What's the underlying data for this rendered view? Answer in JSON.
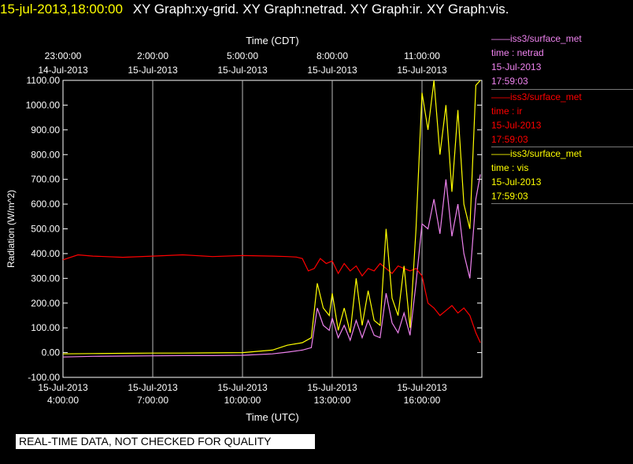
{
  "header": {
    "datetime": "15-jul-2013,18:00:00",
    "graphs": "XY Graph:xy-grid.  XY Graph:netrad.  XY Graph:ir.  XY Graph:vis."
  },
  "legend": [
    {
      "name": "——iss3/surface_met",
      "var": "time : netrad",
      "date": "15-Jul-2013",
      "time": "17:59:03",
      "color": "#ee82ee"
    },
    {
      "name": "——iss3/surface_met",
      "var": "time : ir",
      "date": "15-Jul-2013",
      "time": "17:59:03",
      "color": "#ff0000"
    },
    {
      "name": "——iss3/surface_met",
      "var": "time : vis",
      "date": "15-Jul-2013",
      "time": "17:59:03",
      "color": "#ffff00"
    }
  ],
  "banner": "REAL-TIME DATA, NOT CHECKED FOR QUALITY",
  "chart_data": {
    "type": "line",
    "title": "",
    "xlabel_bottom": "Time (UTC)",
    "xlabel_top": "Time (CDT)",
    "ylabel": "Radiation (W/m^2)",
    "ylim": [
      -100,
      1100
    ],
    "xlim_hours_utc": [
      4.0,
      18.0
    ],
    "grid": true,
    "yticks": [
      "-100.00",
      "0.00",
      "100.00",
      "200.00",
      "300.00",
      "400.00",
      "500.00",
      "600.00",
      "700.00",
      "800.00",
      "900.00",
      "1000.00",
      "1100.00"
    ],
    "bottom_ticks": [
      {
        "x": 4,
        "date": "15-Jul-2013",
        "time": "4:00:00"
      },
      {
        "x": 7,
        "date": "15-Jul-2013",
        "time": "7:00:00"
      },
      {
        "x": 10,
        "date": "15-Jul-2013",
        "time": "10:00:00"
      },
      {
        "x": 13,
        "date": "15-Jul-2013",
        "time": "13:00:00"
      },
      {
        "x": 16,
        "date": "15-Jul-2013",
        "time": "16:00:00"
      }
    ],
    "top_ticks": [
      {
        "x": 4,
        "time": "23:00:00",
        "date": "14-Jul-2013"
      },
      {
        "x": 7,
        "time": "2:00:00",
        "date": "15-Jul-2013"
      },
      {
        "x": 10,
        "time": "5:00:00",
        "date": "15-Jul-2013"
      },
      {
        "x": 13,
        "time": "8:00:00",
        "date": "15-Jul-2013"
      },
      {
        "x": 16,
        "time": "11:00:00",
        "date": "15-Jul-2013"
      }
    ],
    "series": [
      {
        "name": "netrad",
        "color": "#ee82ee",
        "x": [
          4.0,
          5.0,
          6.0,
          7.0,
          8.0,
          9.0,
          10.0,
          11.0,
          11.5,
          12.0,
          12.3,
          12.5,
          12.7,
          12.9,
          13.0,
          13.2,
          13.4,
          13.6,
          13.8,
          14.0,
          14.2,
          14.4,
          14.6,
          14.8,
          15.0,
          15.2,
          15.4,
          15.6,
          15.8,
          16.0,
          16.2,
          16.4,
          16.6,
          16.8,
          17.0,
          17.2,
          17.4,
          17.6,
          17.8,
          17.95
        ],
        "y": [
          -18,
          -15,
          -14,
          -13,
          -12,
          -12,
          -11,
          -5,
          2,
          10,
          20,
          180,
          110,
          90,
          140,
          60,
          110,
          50,
          130,
          60,
          130,
          70,
          60,
          240,
          120,
          80,
          160,
          70,
          280,
          520,
          500,
          620,
          480,
          700,
          470,
          600,
          400,
          300,
          620,
          720
        ]
      },
      {
        "name": "ir",
        "color": "#ff0000",
        "x": [
          4.0,
          4.5,
          5.0,
          6.0,
          7.0,
          8.0,
          9.0,
          10.0,
          11.0,
          11.5,
          11.8,
          12.0,
          12.2,
          12.4,
          12.6,
          12.8,
          13.0,
          13.2,
          13.4,
          13.6,
          13.8,
          14.0,
          14.2,
          14.4,
          14.6,
          14.8,
          15.0,
          15.2,
          15.4,
          15.6,
          15.8,
          16.0,
          16.2,
          16.4,
          16.6,
          16.8,
          17.0,
          17.2,
          17.4,
          17.6,
          17.8,
          17.95
        ],
        "y": [
          375,
          395,
          390,
          385,
          390,
          395,
          388,
          392,
          390,
          388,
          386,
          380,
          330,
          340,
          380,
          360,
          370,
          320,
          360,
          330,
          350,
          310,
          340,
          330,
          360,
          340,
          320,
          350,
          340,
          330,
          340,
          310,
          200,
          180,
          150,
          170,
          190,
          160,
          180,
          150,
          80,
          40
        ]
      },
      {
        "name": "vis",
        "color": "#ffff00",
        "x": [
          4.0,
          5.0,
          6.0,
          7.0,
          8.0,
          9.0,
          10.0,
          11.0,
          11.5,
          12.0,
          12.3,
          12.5,
          12.7,
          12.9,
          13.0,
          13.2,
          13.4,
          13.6,
          13.8,
          14.0,
          14.2,
          14.4,
          14.6,
          14.8,
          15.0,
          15.2,
          15.4,
          15.6,
          15.8,
          16.0,
          16.2,
          16.4,
          16.6,
          16.8,
          17.0,
          17.2,
          17.4,
          17.6,
          17.8,
          17.95
        ],
        "y": [
          -5,
          -4,
          -3,
          -2,
          -2,
          -1,
          0,
          10,
          30,
          40,
          60,
          280,
          180,
          150,
          240,
          90,
          180,
          80,
          300,
          110,
          250,
          130,
          110,
          500,
          220,
          150,
          350,
          100,
          500,
          1050,
          900,
          1100,
          800,
          1000,
          650,
          980,
          600,
          500,
          1080,
          1100
        ]
      }
    ]
  }
}
